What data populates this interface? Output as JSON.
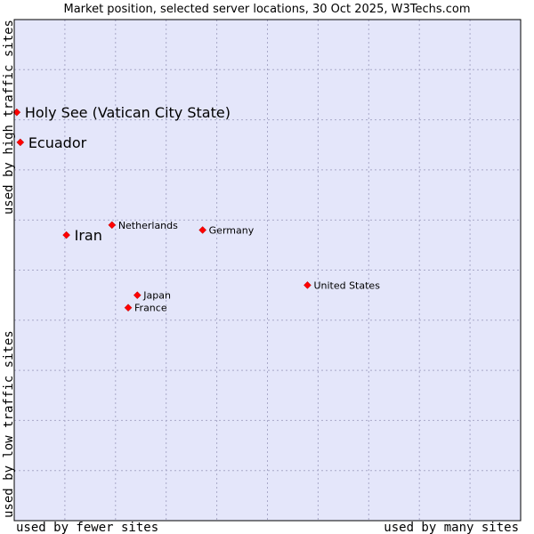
{
  "chart_data": {
    "type": "scatter",
    "title": "Market position, selected server locations, 30 Oct 2025, W3Techs.com",
    "xlabel_left": "used by fewer sites",
    "xlabel_right": "used by many sites",
    "ylabel_top": "used by high traffic sites",
    "ylabel_bottom": "used by low traffic sites",
    "xlim": [
      0,
      10
    ],
    "ylim": [
      0,
      10
    ],
    "grid": true,
    "colors": {
      "plot_background": "#e4e6fa",
      "grid": "#a8a8c8",
      "border": "#000000",
      "point": "#ff0000"
    },
    "points": [
      {
        "label": "Holy See (Vatican City State)",
        "x": 0.05,
        "y": 8.15,
        "emphasis": true
      },
      {
        "label": "Ecuador",
        "x": 0.12,
        "y": 7.55,
        "emphasis": true
      },
      {
        "label": "Iran",
        "x": 1.03,
        "y": 5.7,
        "emphasis": true
      },
      {
        "label": "Netherlands",
        "x": 1.93,
        "y": 5.9,
        "emphasis": false
      },
      {
        "label": "Germany",
        "x": 3.72,
        "y": 5.8,
        "emphasis": false
      },
      {
        "label": "United States",
        "x": 5.79,
        "y": 4.7,
        "emphasis": false
      },
      {
        "label": "Japan",
        "x": 2.43,
        "y": 4.5,
        "emphasis": false
      },
      {
        "label": "France",
        "x": 2.25,
        "y": 4.25,
        "emphasis": false
      }
    ]
  }
}
